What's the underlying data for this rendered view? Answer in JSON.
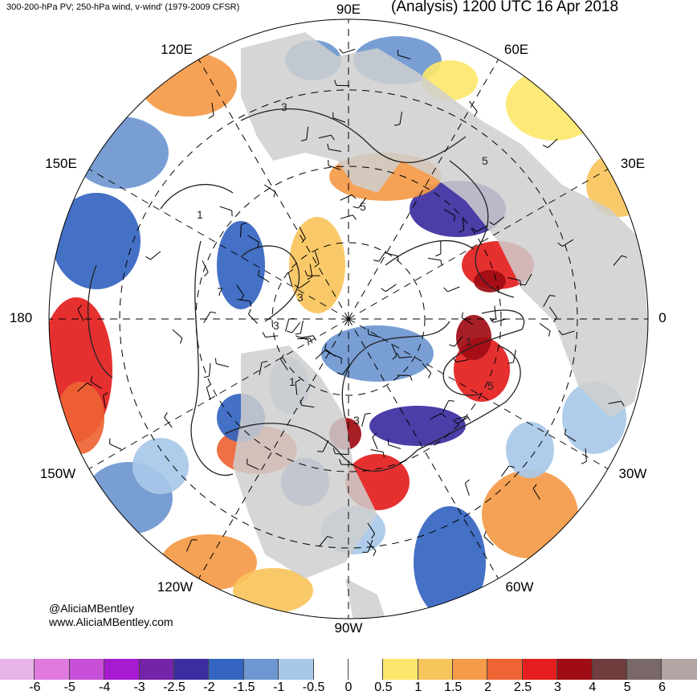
{
  "header": {
    "left": "300-200-hPa PV; 250-hPa wind, v-wind' (1979-2009 CFSR)",
    "right": "(Analysis) 1200 UTC 16 Apr 2018"
  },
  "credits": {
    "handle": "@AliciaMBentley",
    "site": "www.AliciaMBentley.com"
  },
  "longitude_labels": [
    "90E",
    "60E",
    "30E",
    "0",
    "30W",
    "60W",
    "90W",
    "120W",
    "150W",
    "180",
    "150E",
    "120E"
  ],
  "contour_labels": [
    "3",
    "5",
    "1",
    "5",
    "3",
    "3",
    "5",
    "1",
    "3",
    "7",
    "1"
  ],
  "colorbar": {
    "colors": [
      "#e8b4e8",
      "#e07ae0",
      "#c84fd8",
      "#a61ad0",
      "#7424a8",
      "#3c2ea0",
      "#3464c0",
      "#6e96d0",
      "#a8c8e8",
      "#ffffff",
      "#ffffff",
      "#fce76c",
      "#f8c45c",
      "#f49a48",
      "#ee6434",
      "#e41e1e",
      "#a00c14",
      "#703c3c",
      "#7a6868",
      "#b4a4a4"
    ],
    "ticks": [
      "-6",
      "-5",
      "-4",
      "-3",
      "-2.5",
      "-2",
      "-1.5",
      "-1",
      "-0.5",
      "0",
      "0.5",
      "1",
      "1.5",
      "2",
      "2.5",
      "3",
      "4",
      "5",
      "6"
    ]
  }
}
